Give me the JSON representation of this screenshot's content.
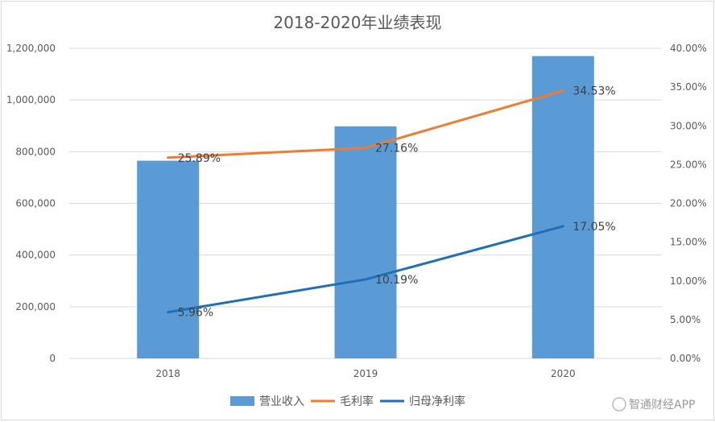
{
  "chart_data": {
    "type": "bar",
    "title": "2018-2020年业绩表现",
    "categories": [
      "2018",
      "2019",
      "2020"
    ],
    "series": [
      {
        "name": "营业收入",
        "type": "bar",
        "axis": "left",
        "color": "#5b9bd5",
        "values": [
          765000,
          898000,
          1170000
        ]
      },
      {
        "name": "毛利率",
        "type": "line",
        "axis": "right",
        "color": "#ed7d31",
        "values": [
          25.89,
          27.16,
          34.53
        ],
        "labels": [
          "25.89%",
          "27.16%",
          "34.53%"
        ]
      },
      {
        "name": "归母净利率",
        "type": "line",
        "axis": "right",
        "color": "#1f6fb5",
        "values": [
          5.96,
          10.19,
          17.05
        ],
        "labels": [
          "5.96%",
          "10.19%",
          "17.05%"
        ]
      }
    ],
    "y_left": {
      "min": 0,
      "max": 1200000,
      "ticks": [
        "0",
        "200,000",
        "400,000",
        "600,000",
        "800,000",
        "1,000,000",
        "1,200,000"
      ]
    },
    "y_right": {
      "min": 0,
      "max": 40,
      "ticks": [
        "0.00%",
        "5.00%",
        "10.00%",
        "15.00%",
        "20.00%",
        "25.00%",
        "30.00%",
        "35.00%",
        "40.00%"
      ]
    },
    "grid": true,
    "legend": "bottom"
  },
  "watermark": "智通财经APP"
}
